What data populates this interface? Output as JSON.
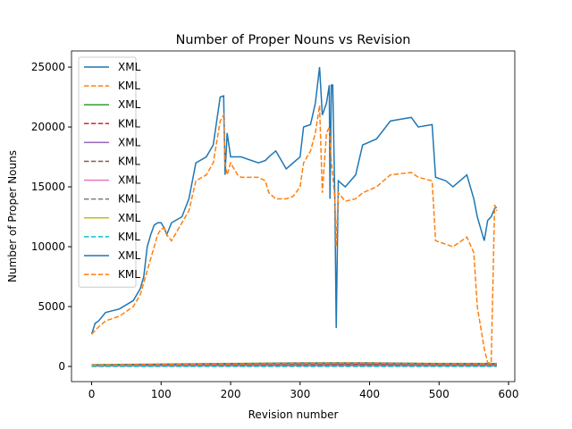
{
  "chart_data": {
    "type": "line",
    "title": "Number of Proper Nouns vs Revision",
    "xlabel": "Revision number",
    "ylabel": "Number of Proper Nouns",
    "xlim": [
      -29,
      609
    ],
    "ylim": [
      -1270,
      26350
    ],
    "xticks": [
      0,
      100,
      200,
      300,
      400,
      500,
      600
    ],
    "yticks": [
      0,
      5000,
      10000,
      15000,
      20000,
      25000
    ],
    "legend": "upper left",
    "series": [
      {
        "name": "XML",
        "color": "#1f77b4",
        "style": "solid",
        "x": [
          0,
          5,
          10,
          20,
          40,
          60,
          70,
          75,
          80,
          85,
          90,
          95,
          100,
          105,
          108,
          115,
          130,
          140,
          150,
          165,
          175,
          185,
          190,
          192,
          195,
          200,
          210,
          215,
          240,
          250,
          255,
          265,
          270,
          280,
          290,
          300,
          305,
          315,
          322,
          328,
          332,
          338,
          342,
          343,
          345,
          347,
          350,
          352,
          355,
          365,
          380,
          390,
          410,
          430,
          460,
          470,
          490,
          495,
          510,
          520,
          540,
          550,
          555,
          565,
          570,
          575,
          580,
          583
        ],
        "values": [
          2700,
          3600,
          3800,
          4500,
          4800,
          5500,
          6500,
          7500,
          10000,
          11000,
          11800,
          12000,
          12000,
          11500,
          11000,
          12000,
          12500,
          14000,
          17000,
          17500,
          18500,
          22500,
          22600,
          16000,
          19500,
          17500,
          17500,
          17500,
          17000,
          17200,
          17500,
          18000,
          17500,
          16500,
          17000,
          17500,
          20000,
          20200,
          22000,
          25000,
          21000,
          22000,
          23500,
          14000,
          23500,
          23500,
          14000,
          3200,
          15500,
          15000,
          16000,
          18500,
          19000,
          20500,
          20800,
          20000,
          20200,
          15800,
          15500,
          15000,
          16000,
          14000,
          12500,
          10500,
          12200,
          12500,
          13200,
          13300
        ]
      },
      {
        "name": "KML",
        "color": "#ff7f0e",
        "style": "dashed",
        "x": [
          0,
          5,
          10,
          20,
          40,
          60,
          70,
          75,
          80,
          85,
          90,
          95,
          100,
          105,
          108,
          115,
          130,
          140,
          150,
          165,
          175,
          185,
          190,
          192,
          195,
          200,
          210,
          215,
          240,
          250,
          255,
          265,
          270,
          280,
          290,
          300,
          305,
          315,
          322,
          328,
          332,
          338,
          342,
          343,
          345,
          347,
          350,
          352,
          355,
          365,
          380,
          390,
          410,
          430,
          460,
          470,
          490,
          495,
          510,
          520,
          540,
          550,
          555,
          565,
          570,
          575,
          580,
          583
        ],
        "values": [
          2700,
          3000,
          3300,
          3800,
          4200,
          5000,
          6000,
          7000,
          8000,
          9000,
          10000,
          11000,
          11500,
          11500,
          11000,
          10500,
          12000,
          13000,
          15500,
          16000,
          17000,
          20500,
          21000,
          17000,
          16000,
          17000,
          16000,
          15800,
          15800,
          15500,
          14500,
          14000,
          14000,
          14000,
          14200,
          15000,
          17000,
          18000,
          19500,
          21800,
          14500,
          19500,
          20000,
          19000,
          17000,
          16000,
          14000,
          10000,
          14500,
          13800,
          14000,
          14500,
          15000,
          16000,
          16200,
          15800,
          15500,
          10500,
          10200,
          10000,
          10800,
          9500,
          5000,
          1500,
          300,
          300,
          13500,
          13000
        ]
      },
      {
        "name": "XML",
        "color": "#2ca02c",
        "style": "solid",
        "x": [
          0,
          100,
          200,
          300,
          400,
          500,
          583
        ],
        "values": [
          100,
          150,
          200,
          250,
          250,
          200,
          200
        ]
      },
      {
        "name": "KML",
        "color": "#d62728",
        "style": "dashed",
        "x": [
          0,
          100,
          200,
          300,
          400,
          500,
          583
        ],
        "values": [
          80,
          120,
          180,
          220,
          230,
          180,
          180
        ]
      },
      {
        "name": "XML",
        "color": "#9467bd",
        "style": "solid",
        "x": [
          0,
          100,
          200,
          300,
          400,
          500,
          583
        ],
        "values": [
          50,
          80,
          100,
          120,
          130,
          110,
          110
        ]
      },
      {
        "name": "KML",
        "color": "#8c564b",
        "style": "dashed",
        "x": [
          0,
          100,
          200,
          300,
          400,
          500,
          583
        ],
        "values": [
          40,
          70,
          90,
          110,
          120,
          100,
          100
        ]
      },
      {
        "name": "XML",
        "color": "#e377c2",
        "style": "solid",
        "x": [
          0,
          100,
          200,
          300,
          400,
          500,
          583
        ],
        "values": [
          20,
          30,
          40,
          50,
          50,
          40,
          40
        ]
      },
      {
        "name": "KML",
        "color": "#7f7f7f",
        "style": "dashed",
        "x": [
          0,
          100,
          200,
          300,
          400,
          500,
          583
        ],
        "values": [
          10,
          20,
          30,
          40,
          40,
          30,
          30
        ]
      },
      {
        "name": "XML",
        "color": "#bcbd22",
        "style": "solid",
        "x": [
          0,
          100,
          200,
          300,
          400,
          500,
          583
        ],
        "values": [
          150,
          200,
          250,
          300,
          300,
          250,
          250
        ]
      },
      {
        "name": "KML",
        "color": "#17becf",
        "style": "dashed",
        "x": [
          0,
          100,
          200,
          300,
          400,
          500,
          583
        ],
        "values": [
          0,
          0,
          0,
          0,
          0,
          0,
          0
        ]
      },
      {
        "name": "XML",
        "color": "#1f77b4",
        "style": "solid",
        "x": [
          0,
          100,
          200,
          300,
          400,
          500,
          583
        ],
        "values": [
          120,
          180,
          230,
          280,
          290,
          230,
          230
        ]
      },
      {
        "name": "KML",
        "color": "#ff7f0e",
        "style": "dashed",
        "x": [
          0,
          100,
          200,
          300,
          400,
          500,
          583
        ],
        "values": [
          100,
          160,
          210,
          260,
          270,
          210,
          210
        ]
      }
    ]
  }
}
